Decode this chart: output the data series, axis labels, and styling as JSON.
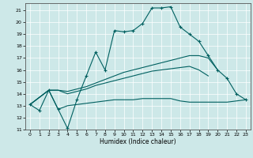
{
  "xlabel": "Humidex (Indice chaleur)",
  "xlim": [
    -0.5,
    23.5
  ],
  "ylim": [
    11,
    21.6
  ],
  "yticks": [
    11,
    12,
    13,
    14,
    15,
    16,
    17,
    18,
    19,
    20,
    21
  ],
  "xticks": [
    0,
    1,
    2,
    3,
    4,
    5,
    6,
    7,
    8,
    9,
    10,
    11,
    12,
    13,
    14,
    15,
    16,
    17,
    18,
    19,
    20,
    21,
    22,
    23
  ],
  "bg_color": "#cde8e8",
  "line_color": "#006060",
  "grid_color": "#ffffff",
  "line1_x": [
    0,
    1,
    2,
    3,
    4,
    5,
    6,
    7,
    8,
    9,
    10,
    11,
    12,
    13,
    14,
    15,
    16,
    17,
    18,
    19,
    20,
    21,
    22,
    23
  ],
  "line1_y": [
    13.1,
    12.6,
    14.3,
    12.7,
    11.1,
    13.5,
    15.5,
    17.5,
    16.0,
    19.3,
    19.2,
    19.3,
    19.9,
    21.2,
    21.2,
    21.3,
    19.6,
    19.0,
    18.4,
    17.2,
    16.0,
    15.3,
    14.0,
    13.5
  ],
  "line2_x": [
    0,
    2,
    3,
    4,
    5,
    6,
    7,
    8,
    9,
    10,
    11,
    12,
    13,
    14,
    15,
    16,
    17,
    18,
    19,
    20
  ],
  "line2_y": [
    13.1,
    14.3,
    14.3,
    14.2,
    14.4,
    14.6,
    14.9,
    15.2,
    15.5,
    15.8,
    16.0,
    16.2,
    16.4,
    16.6,
    16.8,
    17.0,
    17.2,
    17.2,
    17.0,
    16.0
  ],
  "line3_x": [
    0,
    2,
    3,
    4,
    5,
    6,
    7,
    8,
    9,
    10,
    11,
    12,
    13,
    14,
    15,
    16,
    17,
    18,
    19
  ],
  "line3_y": [
    13.1,
    14.3,
    14.3,
    14.0,
    14.2,
    14.4,
    14.7,
    14.9,
    15.1,
    15.3,
    15.5,
    15.7,
    15.9,
    16.0,
    16.1,
    16.2,
    16.3,
    16.0,
    15.5
  ],
  "line4_x": [
    0,
    2,
    3,
    4,
    5,
    6,
    7,
    8,
    9,
    10,
    11,
    12,
    13,
    14,
    15,
    16,
    17,
    18,
    19,
    20,
    21,
    22,
    23
  ],
  "line4_y": [
    13.1,
    14.3,
    12.7,
    13.0,
    13.1,
    13.2,
    13.3,
    13.4,
    13.5,
    13.5,
    13.5,
    13.6,
    13.6,
    13.6,
    13.6,
    13.4,
    13.3,
    13.3,
    13.3,
    13.3,
    13.3,
    13.4,
    13.5
  ]
}
